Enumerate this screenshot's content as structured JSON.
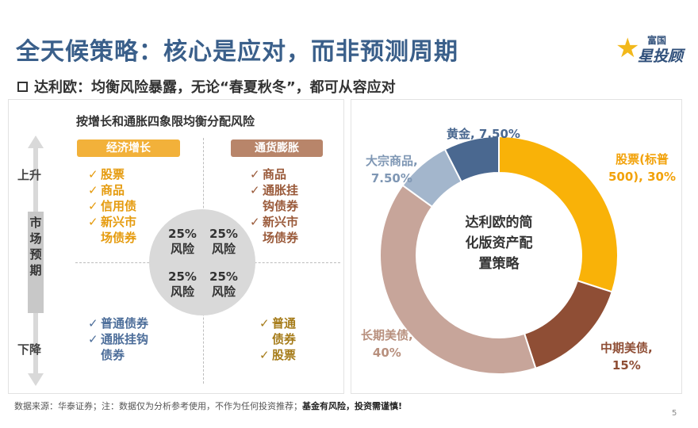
{
  "header": {
    "title": "全天候策略：核心是应对，而非预测周期",
    "logo_top": "富国",
    "logo_main": "星投顾",
    "subtitle": "达利欧：均衡风险暴露，无论“春夏秋冬”，都可从容应对"
  },
  "quadrant": {
    "title": "按增长和通胀四象限均衡分配风险",
    "axis_label": "市场预期",
    "up_label": "上升",
    "down_label": "下降",
    "risk_cells": [
      {
        "pct": "25%",
        "word": "风险"
      },
      {
        "pct": "25%",
        "word": "风险"
      },
      {
        "pct": "25%",
        "word": "风险"
      },
      {
        "pct": "25%",
        "word": "风险"
      }
    ],
    "growth": {
      "head": "经济增长",
      "items": [
        [
          "股票"
        ],
        [
          "商品"
        ],
        [
          "信用债"
        ],
        [
          "新兴市",
          "场债券"
        ]
      ]
    },
    "inflation": {
      "head": "通货膨胀",
      "items": [
        [
          "商品"
        ],
        [
          "通胀挂",
          "钩债券"
        ],
        [
          "新兴市",
          "场债券"
        ]
      ]
    },
    "falling_growth": {
      "items": [
        [
          "普通债券"
        ],
        [
          "通胀挂钩",
          "债券"
        ]
      ]
    },
    "falling_inflation": {
      "items": [
        [
          "普通",
          "债券"
        ],
        [
          "股票"
        ]
      ]
    },
    "colors": {
      "growth_head": "#f2b13a",
      "inflation_head": "#b8856a"
    }
  },
  "chart_data": {
    "type": "pie",
    "variant": "donut",
    "title": "达利欧的简化版资产配置策略",
    "slices": [
      {
        "name": "股票(标普500)",
        "value": 30,
        "label": "股票(标普500), 30%",
        "color": "#f9b208"
      },
      {
        "name": "中期美债",
        "value": 15,
        "label": "中期美债, 15%",
        "color": "#8f4e35"
      },
      {
        "name": "长期美债",
        "value": 40,
        "label": "长期美债, 40%",
        "color": "#c7a59a"
      },
      {
        "name": "大宗商品",
        "value": 7.5,
        "label": "大宗商品, 7.50%",
        "color": "#a3b6cc"
      },
      {
        "name": "黄金",
        "value": 7.5,
        "label": "黄金, 7.50%",
        "color": "#4a6890"
      }
    ],
    "label_lines": {
      "stock": [
        "股票(标普",
        "500), 30%"
      ],
      "mid": [
        "中期美债,",
        "15%"
      ],
      "long": [
        "长期美债,",
        "40%"
      ],
      "commodity": [
        "大宗商品,",
        "7.50%"
      ],
      "gold": [
        "黄金, 7.50%"
      ]
    },
    "center_lines": [
      "达利欧的简",
      "化版资产配",
      "置策略"
    ]
  },
  "footer": {
    "source": "数据来源：华泰证券；注：数据仅为分析参考使用，不作为任何投资推荐；",
    "warning": "基金有风险，投资需谨慎!",
    "page": "5"
  }
}
